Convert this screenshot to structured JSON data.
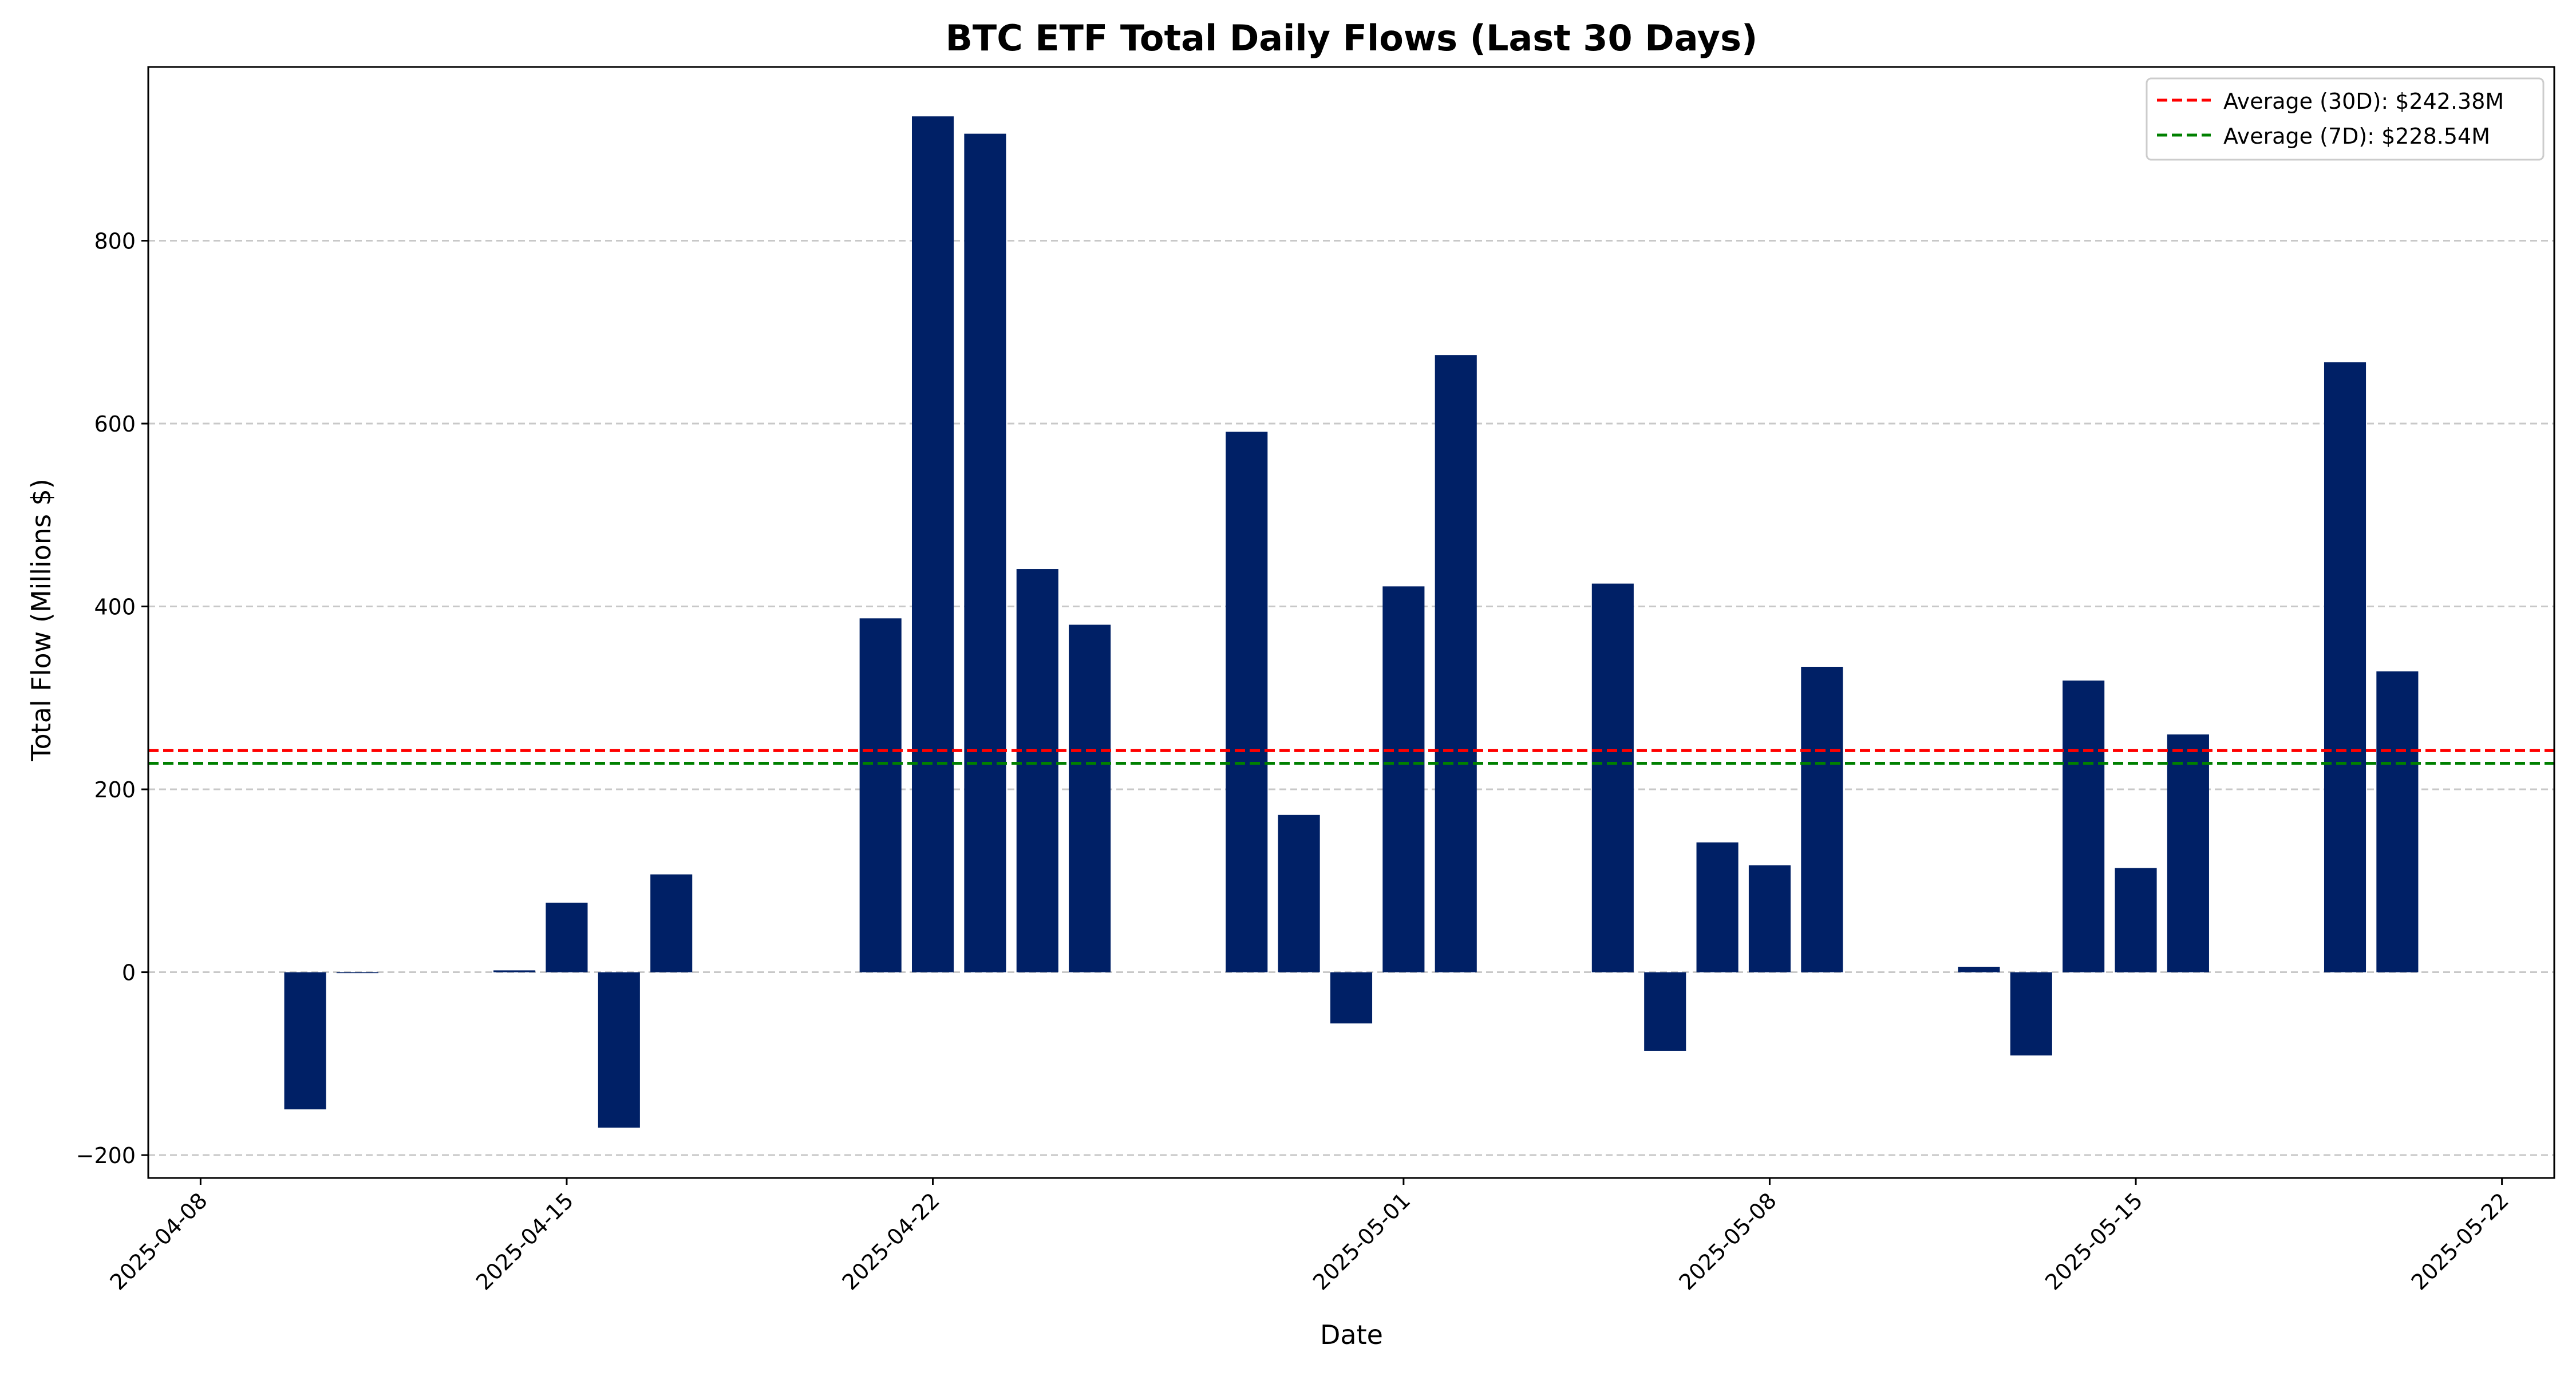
{
  "chart_data": {
    "type": "bar",
    "title": "BTC ETF Total Daily Flows (Last 30 Days)",
    "xlabel": "Date",
    "ylabel": "Total Flow (Millions $)",
    "ylim": [
      -225,
      990
    ],
    "xlim": [
      "2025-04-07",
      "2025-05-23"
    ],
    "grid": "y-dashed",
    "legend_position": "top-right",
    "colors": {
      "bar": "#002066",
      "avg30": "#ff0000",
      "avg7": "#008000",
      "grid": "#c8c8c8"
    },
    "x_ticks": [
      "2025-04-08",
      "2025-04-15",
      "2025-04-22",
      "2025-05-01",
      "2025-05-08",
      "2025-05-15",
      "2025-05-22"
    ],
    "y_ticks": [
      -200,
      0,
      200,
      400,
      600,
      800
    ],
    "y_tick_labels": [
      "−200",
      "0",
      "200",
      "400",
      "600",
      "800"
    ],
    "series": [
      {
        "name": "",
        "x": [
          "2025-04-10",
          "2025-04-11",
          "2025-04-14",
          "2025-04-15",
          "2025-04-16",
          "2025-04-17",
          "2025-04-21",
          "2025-04-22",
          "2025-04-23",
          "2025-04-24",
          "2025-04-25",
          "2025-04-28",
          "2025-04-29",
          "2025-04-30",
          "2025-05-01",
          "2025-05-02",
          "2025-05-05",
          "2025-05-06",
          "2025-05-07",
          "2025-05-08",
          "2025-05-09",
          "2025-05-12",
          "2025-05-13",
          "2025-05-14",
          "2025-05-15",
          "2025-05-16",
          "2025-05-19",
          "2025-05-20"
        ],
        "values": [
          -150,
          -1,
          2,
          76,
          -170,
          107,
          387,
          936,
          917,
          441,
          380,
          591,
          172,
          -56,
          422,
          675,
          425,
          -86,
          142,
          117,
          334,
          6,
          -91,
          319,
          114,
          260,
          667,
          329
        ]
      }
    ],
    "reference_lines": [
      {
        "name": "Average (30D): $242.38M",
        "value": 242.38,
        "color": "#ff0000",
        "style": "dashed"
      },
      {
        "name": "Average (7D): $228.54M",
        "value": 228.54,
        "color": "#008000",
        "style": "dashed"
      }
    ]
  }
}
